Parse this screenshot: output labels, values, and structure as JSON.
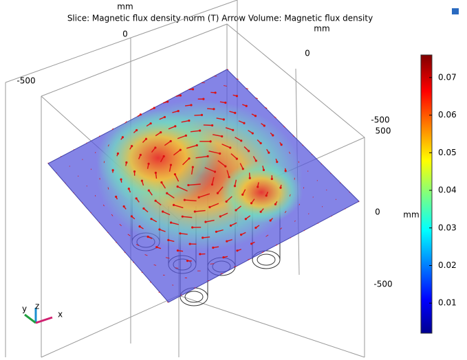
{
  "title": "Slice: Magnetic flux density norm (T)  Arrow Volume: Magnetic flux density",
  "axes": {
    "top_unit": "mm",
    "top_ticks": [
      "0",
      "-500"
    ],
    "right_unit": "mm",
    "right_ticks": [
      "0"
    ],
    "side_ticks": [
      "-500",
      "500",
      "0",
      "-500"
    ],
    "side_unit": "mm"
  },
  "triad": [
    "y",
    "z",
    "x"
  ],
  "colorbar": {
    "lim": [
      0.002,
      0.076
    ],
    "ticks": [
      0.01,
      0.02,
      0.03,
      0.04,
      0.05,
      0.06,
      0.07
    ]
  }
}
